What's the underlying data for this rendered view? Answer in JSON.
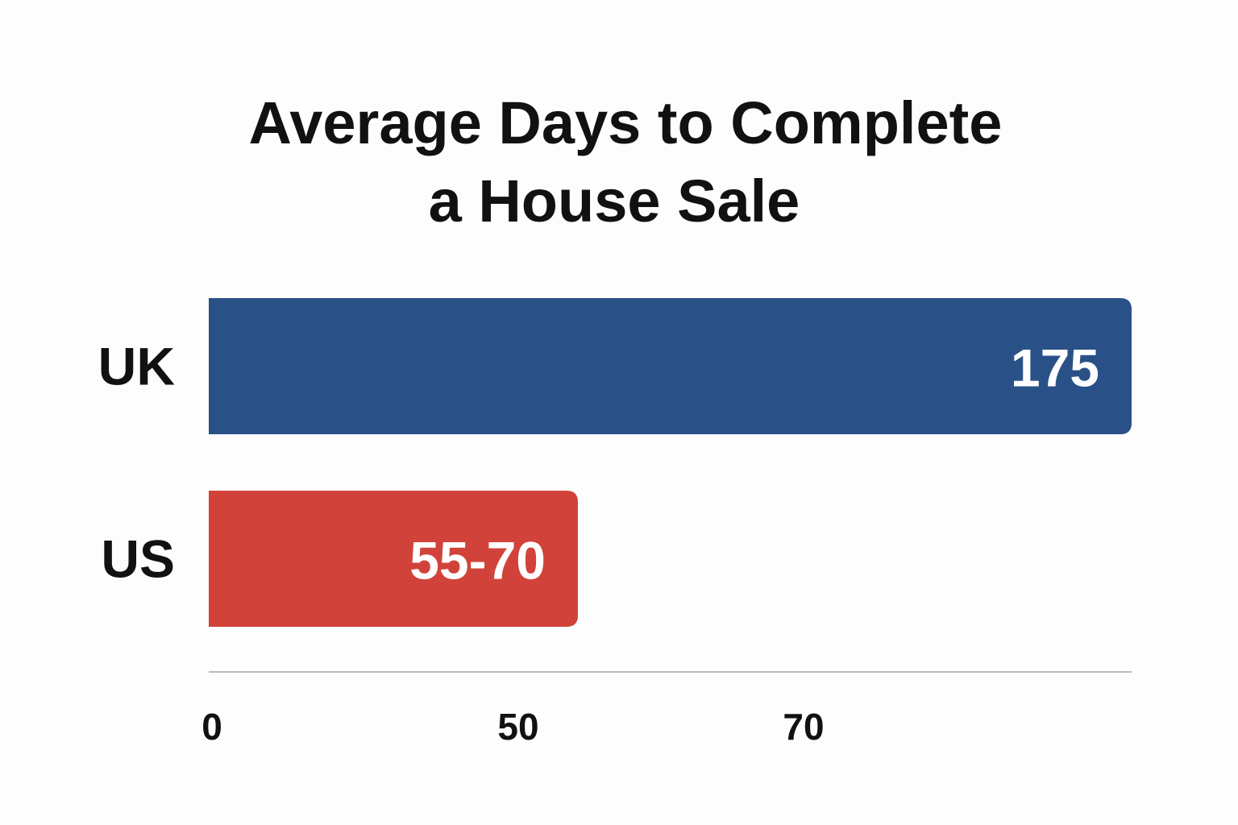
{
  "chart_data": {
    "type": "bar",
    "orientation": "horizontal",
    "title_lines": [
      "Average Days to Complete",
      "a House Sale"
    ],
    "categories": [
      "UK",
      "US"
    ],
    "values": [
      175,
      70
    ],
    "value_labels": [
      "175",
      "55-70"
    ],
    "colors": [
      "#2a5187",
      "#d1433a"
    ],
    "axis_color": "#bbbbbb",
    "x_ticks": [
      {
        "value": 0,
        "label": "0"
      },
      {
        "value": 50,
        "label": "50"
      },
      {
        "value": 70,
        "label": "70"
      }
    ],
    "grid": false,
    "legend": "none"
  }
}
